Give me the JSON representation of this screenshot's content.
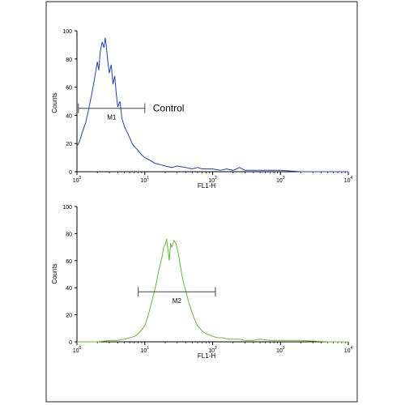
{
  "chart_data": [
    {
      "type": "line",
      "title": "",
      "xlabel": "FL1-H",
      "ylabel": "Counts",
      "x_scale": "log",
      "xlim": [
        1,
        10000
      ],
      "ylim": [
        0,
        100
      ],
      "x_tick_values": [
        1,
        10,
        100,
        1000,
        10000
      ],
      "x_tick_labels": [
        {
          "base": "10",
          "exp": "0"
        },
        {
          "base": "10",
          "exp": "1"
        },
        {
          "base": "10",
          "exp": "2"
        },
        {
          "base": "10",
          "exp": "3"
        },
        {
          "base": "10",
          "exp": "4"
        }
      ],
      "y_ticks": [
        "0",
        "20",
        "40",
        "60",
        "80",
        "100"
      ],
      "y_tick_values": [
        0,
        20,
        40,
        60,
        80,
        100
      ],
      "color": "#1f3fbf",
      "series": [
        {
          "x": [
            1,
            1.1,
            1.2,
            1.35,
            1.5,
            1.65,
            1.8,
            2.0,
            2.1,
            2.2,
            2.35,
            2.5,
            2.6,
            2.7,
            2.85,
            3.0,
            3.2,
            3.4,
            3.6,
            3.8,
            4.0,
            4.3,
            4.6,
            5.0,
            5.5,
            6.0,
            6.5,
            7.0,
            8.0,
            9.0,
            10,
            12,
            14,
            17,
            20,
            25,
            30,
            40,
            50,
            60,
            70,
            80,
            100,
            130,
            160,
            200,
            250,
            300,
            400,
            600,
            1000,
            2000,
            5000,
            10000
          ],
          "y": [
            18,
            22,
            28,
            35,
            45,
            55,
            65,
            78,
            72,
            85,
            92,
            88,
            95,
            90,
            78,
            70,
            76,
            62,
            68,
            55,
            46,
            50,
            38,
            32,
            28,
            24,
            20,
            18,
            15,
            12,
            10,
            8,
            6,
            5,
            4,
            3,
            4,
            3,
            2,
            3,
            2,
            2,
            2,
            1,
            2,
            1,
            3,
            1,
            1,
            1,
            1,
            0,
            0,
            0
          ]
        }
      ],
      "marker": {
        "label": "M1",
        "x_range": [
          1.05,
          10
        ],
        "y_level": 45,
        "annotation": "Control"
      }
    },
    {
      "type": "line",
      "title": "",
      "xlabel": "FL1-H",
      "ylabel": "Counts",
      "x_scale": "log",
      "xlim": [
        1,
        10000
      ],
      "ylim": [
        0,
        100
      ],
      "x_tick_values": [
        1,
        10,
        100,
        1000,
        10000
      ],
      "x_tick_labels": [
        {
          "base": "10",
          "exp": "0"
        },
        {
          "base": "10",
          "exp": "1"
        },
        {
          "base": "10",
          "exp": "2"
        },
        {
          "base": "10",
          "exp": "3"
        },
        {
          "base": "10",
          "exp": "4"
        }
      ],
      "y_ticks": [
        "0",
        "20",
        "40",
        "60",
        "80",
        "100"
      ],
      "y_tick_values": [
        0,
        20,
        40,
        60,
        80,
        100
      ],
      "color": "#5cbf2a",
      "series": [
        {
          "x": [
            1,
            2,
            3,
            4,
            5,
            6,
            7,
            8,
            9,
            10,
            11,
            12,
            13,
            14,
            15,
            16,
            17,
            18,
            19,
            20,
            21,
            22,
            23,
            24,
            25,
            27,
            29,
            31,
            33,
            35,
            38,
            41,
            44,
            48,
            52,
            56,
            60,
            65,
            70,
            80,
            90,
            100,
            120,
            140,
            170,
            200,
            250,
            300,
            400,
            500,
            700,
            1000,
            2000,
            5000,
            10000
          ],
          "y": [
            0,
            0,
            1,
            1,
            2,
            3,
            4,
            6,
            9,
            12,
            18,
            25,
            32,
            38,
            45,
            52,
            58,
            63,
            70,
            72,
            76,
            68,
            60,
            73,
            70,
            75,
            72,
            66,
            58,
            50,
            42,
            36,
            30,
            24,
            19,
            15,
            12,
            10,
            8,
            6,
            5,
            4,
            3,
            3,
            2,
            2,
            2,
            1,
            1,
            2,
            1,
            1,
            1,
            0,
            0
          ]
        }
      ],
      "marker": {
        "label": "M2",
        "x_range": [
          8,
          110
        ],
        "y_level": 37
      }
    }
  ]
}
